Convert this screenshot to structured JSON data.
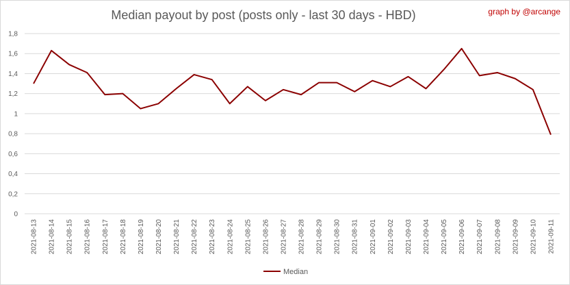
{
  "title": "Median payout by post (posts only - last 30 days - HBD)",
  "credit": "graph by @arcange",
  "chart_data": {
    "type": "line",
    "title": "Median payout by post (posts only - last 30 days - HBD)",
    "xlabel": "",
    "ylabel": "",
    "ylim": [
      0,
      1.8
    ],
    "yticks": [
      0,
      0.2,
      0.4,
      0.6,
      0.8,
      1,
      1.2,
      1.4,
      1.6,
      1.8
    ],
    "ytick_labels": [
      "0",
      "0,2",
      "0,4",
      "0,6",
      "0,8",
      "1",
      "1,2",
      "1,4",
      "1,6",
      "1,8"
    ],
    "grid": true,
    "legend": "bottom",
    "categories": [
      "2021-08-13",
      "2021-08-14",
      "2021-08-15",
      "2021-08-16",
      "2021-08-17",
      "2021-08-18",
      "2021-08-19",
      "2021-08-20",
      "2021-08-21",
      "2021-08-22",
      "2021-08-23",
      "2021-08-24",
      "2021-08-25",
      "2021-08-26",
      "2021-08-27",
      "2021-08-28",
      "2021-08-29",
      "2021-08-30",
      "2021-08-31",
      "2021-09-01",
      "2021-09-02",
      "2021-09-03",
      "2021-09-04",
      "2021-09-05",
      "2021-09-06",
      "2021-09-07",
      "2021-09-08",
      "2021-09-09",
      "2021-09-10",
      "2021-09-11"
    ],
    "series": [
      {
        "name": "Median",
        "color": "#8b0000",
        "values": [
          1.3,
          1.63,
          1.49,
          1.41,
          1.19,
          1.2,
          1.05,
          1.1,
          1.25,
          1.39,
          1.34,
          1.1,
          1.27,
          1.13,
          1.24,
          1.19,
          1.31,
          1.31,
          1.22,
          1.33,
          1.27,
          1.37,
          1.25,
          1.44,
          1.65,
          1.38,
          1.41,
          1.35,
          1.24,
          0.79
        ]
      }
    ]
  }
}
